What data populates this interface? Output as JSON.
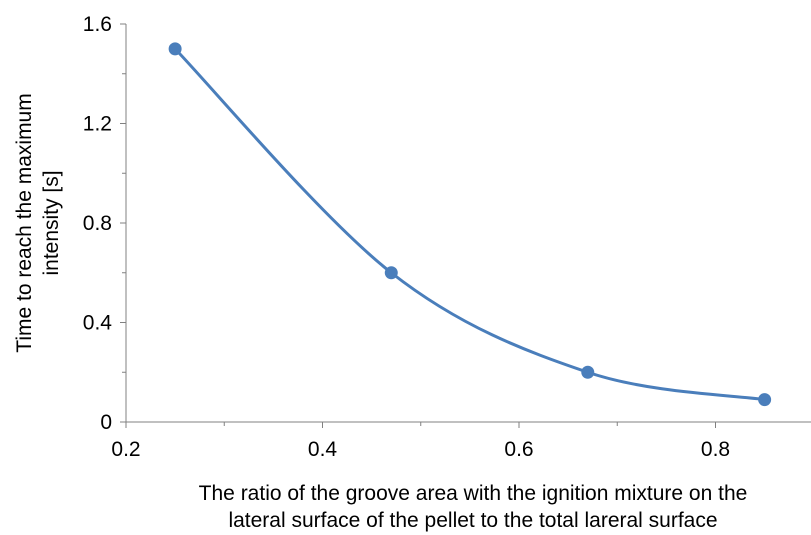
{
  "chart_data": {
    "type": "line",
    "series": [
      {
        "x": [
          0.25,
          0.47,
          0.67,
          0.85
        ],
        "values": [
          1.5,
          0.6,
          0.2,
          0.09
        ]
      }
    ],
    "xlabel": "The ratio of the groove area with the ignition mixture on the lateral surface of the pellet to the total lareral surface",
    "xlabel_lines": [
      "The ratio of the groove area with the ignition mixture on the",
      "lateral surface of the pellet to the total lareral surface"
    ],
    "ylabel": "Time to reach the maximum intensity [s]",
    "ylabel_lines": [
      "Time to reach the maximum",
      "intensity [s]"
    ],
    "xlim": [
      0.2,
      0.9
    ],
    "ylim": [
      0,
      1.6
    ],
    "x_ticks": [
      "0.2",
      "0.4",
      "0.6",
      "0.8"
    ],
    "y_ticks": [
      "0",
      "0.4",
      "0.8",
      "1.2",
      "1.6"
    ],
    "grid": false,
    "line_style": "smooth",
    "color": "#4a7ebb"
  }
}
